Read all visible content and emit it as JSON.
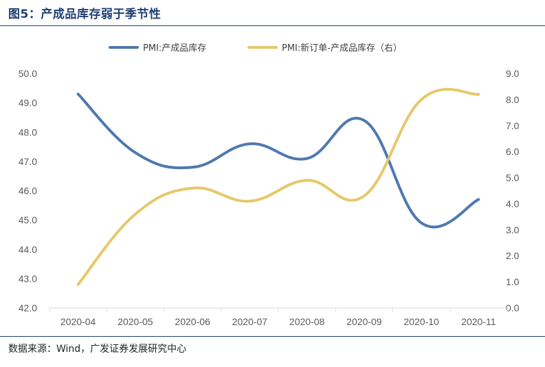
{
  "header": {
    "title": "图5：产成品库存弱于季节性"
  },
  "footer": {
    "source": "数据来源：Wind，广发证券发展研究中心"
  },
  "chart_data": {
    "type": "line",
    "categories": [
      "2020-04",
      "2020-05",
      "2020-06",
      "2020-07",
      "2020-08",
      "2020-09",
      "2020-10",
      "2020-11"
    ],
    "series": [
      {
        "name": "PMI:产成品库存",
        "axis": "left",
        "color": "#4e79b0",
        "values": [
          49.3,
          47.3,
          46.8,
          47.6,
          47.1,
          48.4,
          44.9,
          45.7
        ]
      },
      {
        "name": "PMI:新订单-产成品库存（右）",
        "axis": "right",
        "color": "#e6c86a",
        "values": [
          0.9,
          3.6,
          4.6,
          4.1,
          4.9,
          4.3,
          8.0,
          8.2
        ]
      }
    ],
    "yleft": {
      "min": 42.0,
      "max": 50.0,
      "ticks": [
        "42.0",
        "43.0",
        "44.0",
        "45.0",
        "46.0",
        "47.0",
        "48.0",
        "49.0",
        "50.0"
      ]
    },
    "yright": {
      "min": 0.0,
      "max": 9.0,
      "ticks": [
        "0.0",
        "1.0",
        "2.0",
        "3.0",
        "4.0",
        "5.0",
        "6.0",
        "7.0",
        "8.0",
        "9.0"
      ]
    },
    "legend_position": "top-center"
  }
}
